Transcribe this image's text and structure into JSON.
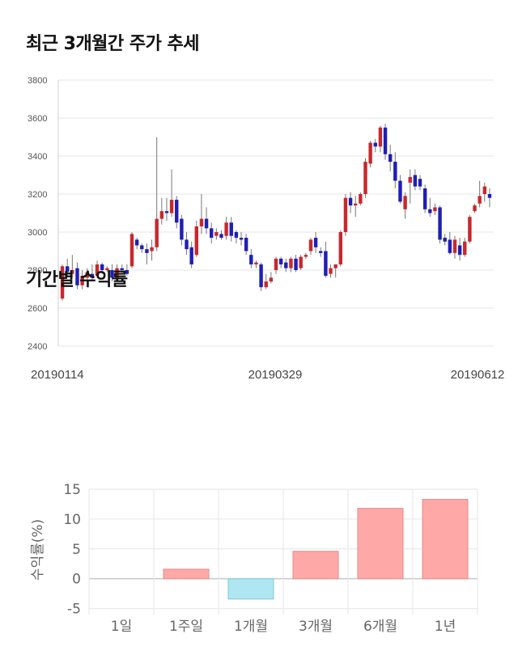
{
  "section1": {
    "title": "최근 3개월간 주가 추세"
  },
  "section2": {
    "title": "기간별 수익률"
  },
  "colors": {
    "up": "#c8282d",
    "down": "#1f1fb5",
    "positive_bar": "#ffa8a8",
    "negative_bar": "#aee6f2",
    "grid": "#e6e6e6"
  },
  "chart_data": [
    {
      "type": "candlestick",
      "title": "최근 3개월간 주가 추세",
      "ylim": [
        2400,
        3800
      ],
      "y_ticks": [
        "2400",
        "2600",
        "2800",
        "3000",
        "3200",
        "3400",
        "3600",
        "3800"
      ],
      "x_tick_labels": [
        "20190114",
        "20190329",
        "20190612"
      ],
      "grid": true,
      "candles": [
        [
          2650,
          2820,
          2640,
          2830
        ],
        [
          2820,
          2790,
          2770,
          2860
        ],
        [
          2780,
          2800,
          2760,
          2880
        ],
        [
          2810,
          2720,
          2700,
          2840
        ],
        [
          2720,
          2770,
          2700,
          2800
        ],
        [
          2760,
          2790,
          2740,
          2810
        ],
        [
          2780,
          2760,
          2740,
          2830
        ],
        [
          2770,
          2830,
          2760,
          2850
        ],
        [
          2830,
          2800,
          2780,
          2840
        ],
        [
          2800,
          2810,
          2790,
          2820
        ],
        [
          2800,
          2760,
          2740,
          2830
        ],
        [
          2760,
          2810,
          2740,
          2830
        ],
        [
          2810,
          2800,
          2780,
          2830
        ],
        [
          2800,
          2780,
          2770,
          2830
        ],
        [
          2820,
          2990,
          2810,
          3000
        ],
        [
          2960,
          2930,
          2910,
          2970
        ],
        [
          2930,
          2910,
          2890,
          2940
        ],
        [
          2910,
          2890,
          2830,
          2940
        ],
        [
          2900,
          2920,
          2850,
          2960
        ],
        [
          2920,
          3070,
          2900,
          3500
        ],
        [
          3070,
          3110,
          3040,
          3180
        ],
        [
          3110,
          3100,
          3060,
          3180
        ],
        [
          3100,
          3170,
          3080,
          3330
        ],
        [
          3170,
          3050,
          3020,
          3190
        ],
        [
          3070,
          2960,
          2930,
          3090
        ],
        [
          2960,
          2910,
          2880,
          3000
        ],
        [
          2920,
          2830,
          2810,
          2950
        ],
        [
          2880,
          3030,
          2870,
          3060
        ],
        [
          3030,
          3070,
          2990,
          3200
        ],
        [
          3070,
          3020,
          2990,
          3130
        ],
        [
          3020,
          2970,
          2940,
          3050
        ],
        [
          2980,
          3000,
          2960,
          3020
        ],
        [
          2990,
          2970,
          2960,
          3010
        ],
        [
          2980,
          3050,
          2960,
          3080
        ],
        [
          3050,
          2980,
          2950,
          3080
        ],
        [
          3000,
          2970,
          2940,
          3010
        ],
        [
          2970,
          2960,
          2930,
          3000
        ],
        [
          2970,
          2900,
          2880,
          2990
        ],
        [
          2880,
          2830,
          2810,
          2910
        ],
        [
          2830,
          2840,
          2810,
          2850
        ],
        [
          2830,
          2710,
          2690,
          2840
        ],
        [
          2710,
          2740,
          2700,
          2780
        ],
        [
          2740,
          2760,
          2730,
          2790
        ],
        [
          2800,
          2860,
          2780,
          2870
        ],
        [
          2860,
          2830,
          2810,
          2870
        ],
        [
          2840,
          2810,
          2790,
          2860
        ],
        [
          2810,
          2860,
          2790,
          2870
        ],
        [
          2860,
          2800,
          2790,
          2880
        ],
        [
          2810,
          2870,
          2800,
          2880
        ],
        [
          2870,
          2880,
          2860,
          2890
        ],
        [
          2900,
          2960,
          2880,
          2970
        ],
        [
          2970,
          2920,
          2890,
          3000
        ],
        [
          2900,
          2890,
          2870,
          2920
        ],
        [
          2900,
          2770,
          2760,
          2950
        ],
        [
          2780,
          2810,
          2760,
          2830
        ],
        [
          2810,
          2830,
          2760,
          2830
        ],
        [
          2830,
          3000,
          2820,
          3010
        ],
        [
          3000,
          3180,
          2980,
          3200
        ],
        [
          3180,
          3140,
          3100,
          3210
        ],
        [
          3140,
          3150,
          3080,
          3190
        ],
        [
          3150,
          3200,
          3140,
          3210
        ],
        [
          3200,
          3370,
          3180,
          3390
        ],
        [
          3360,
          3470,
          3340,
          3480
        ],
        [
          3470,
          3450,
          3420,
          3490
        ],
        [
          3450,
          3550,
          3420,
          3560
        ],
        [
          3550,
          3410,
          3380,
          3570
        ],
        [
          3410,
          3370,
          3320,
          3460
        ],
        [
          3370,
          3270,
          3230,
          3420
        ],
        [
          3270,
          3160,
          3150,
          3300
        ],
        [
          3120,
          3190,
          3070,
          3210
        ],
        [
          3260,
          3290,
          3150,
          3330
        ],
        [
          3300,
          3240,
          3220,
          3330
        ],
        [
          3280,
          3240,
          3220,
          3300
        ],
        [
          3230,
          3120,
          3100,
          3250
        ],
        [
          3120,
          3100,
          3080,
          3180
        ],
        [
          3110,
          3130,
          3090,
          3150
        ],
        [
          3130,
          2960,
          2940,
          3140
        ],
        [
          2970,
          2950,
          2930,
          2990
        ],
        [
          2960,
          2890,
          2880,
          3000
        ],
        [
          2890,
          2960,
          2860,
          2980
        ],
        [
          2930,
          2880,
          2850,
          2970
        ],
        [
          2880,
          2950,
          2870,
          2970
        ],
        [
          2950,
          3080,
          2940,
          3090
        ],
        [
          3110,
          3140,
          3100,
          3150
        ],
        [
          3150,
          3190,
          3130,
          3270
        ],
        [
          3200,
          3240,
          3160,
          3260
        ],
        [
          3200,
          3180,
          3130,
          3230
        ]
      ]
    },
    {
      "type": "bar",
      "title": "기간별 수익률",
      "ylabel": "수익률(%)",
      "categories": [
        "1일",
        "1주일",
        "1개월",
        "3개월",
        "6개월",
        "1년"
      ],
      "values": [
        0.0,
        1.6,
        -3.4,
        4.6,
        11.8,
        13.3
      ],
      "ylim": [
        -6,
        15
      ],
      "y_ticks": [
        "-5",
        "0",
        "5",
        "10",
        "15"
      ],
      "grid": true
    }
  ]
}
